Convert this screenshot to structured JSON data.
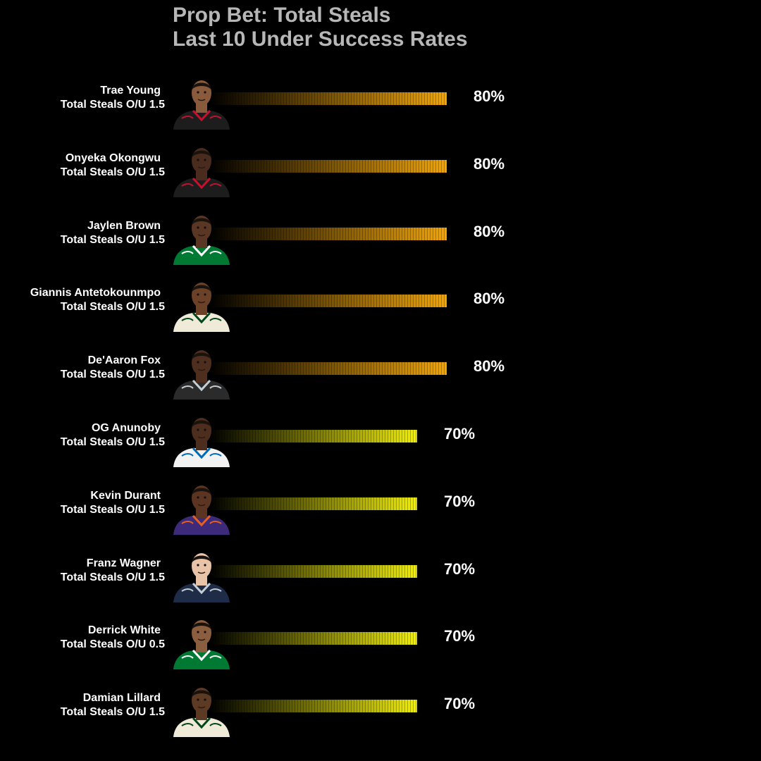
{
  "title_lines": [
    "Prop Bet: Total Steals",
    "Last 10 Under Success Rates"
  ],
  "colors": {
    "background": "#000000",
    "title": "#b7b7b7",
    "text": "#ffffff",
    "bar_80": "#f5a500",
    "bar_70": "#f2f000"
  },
  "chart_data": {
    "type": "bar",
    "orientation": "horizontal",
    "title": "Prop Bet: Total Steals Last 10 Under Success Rates",
    "categories": [
      "Trae Young",
      "Onyeka Okongwu",
      "Jaylen Brown",
      "Giannis Antetokounmpo",
      "De'Aaron Fox",
      "OG Anunoby",
      "Kevin Durant",
      "Franz Wagner",
      "Derrick White",
      "Damian Lillard"
    ],
    "values": [
      80,
      80,
      80,
      80,
      80,
      70,
      70,
      70,
      70,
      70
    ],
    "xlim": [
      0,
      100
    ],
    "grid": false,
    "legend": "none"
  },
  "rows": [
    {
      "name": "Trae Young",
      "prop": "Total Steals O/U 1.5",
      "pct": "80%",
      "value": 80,
      "jersey": "hawks"
    },
    {
      "name": "Onyeka Okongwu",
      "prop": "Total Steals O/U 1.5",
      "pct": "80%",
      "value": 80,
      "jersey": "hawks"
    },
    {
      "name": "Jaylen Brown",
      "prop": "Total Steals O/U 1.5",
      "pct": "80%",
      "value": 80,
      "jersey": "celtics"
    },
    {
      "name": "Giannis Antetokounmpo",
      "prop": "Total Steals O/U 1.5",
      "pct": "80%",
      "value": 80,
      "jersey": "bucks"
    },
    {
      "name": "De'Aaron Fox",
      "prop": "Total Steals O/U 1.5",
      "pct": "80%",
      "value": 80,
      "jersey": "kings"
    },
    {
      "name": "OG Anunoby",
      "prop": "Total Steals O/U 1.5",
      "pct": "70%",
      "value": 70,
      "jersey": "knicks"
    },
    {
      "name": "Kevin Durant",
      "prop": "Total Steals O/U 1.5",
      "pct": "70%",
      "value": 70,
      "jersey": "suns"
    },
    {
      "name": "Franz Wagner",
      "prop": "Total Steals O/U 1.5",
      "pct": "70%",
      "value": 70,
      "jersey": "magic"
    },
    {
      "name": "Derrick White",
      "prop": "Total Steals O/U 0.5",
      "pct": "70%",
      "value": 70,
      "jersey": "celtics"
    },
    {
      "name": "Damian Lillard",
      "prop": "Total Steals O/U 1.5",
      "pct": "70%",
      "value": 70,
      "jersey": "bucks"
    }
  ]
}
